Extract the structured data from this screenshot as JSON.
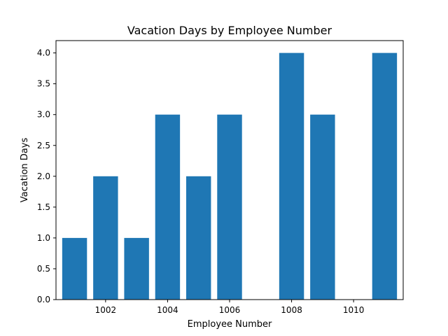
{
  "chart_data": {
    "type": "bar",
    "title": "Vacation Days by Employee Number",
    "xlabel": "Employee Number",
    "ylabel": "Vacation Days",
    "x": [
      1001,
      1002,
      1003,
      1004,
      1005,
      1006,
      1008,
      1009,
      1011
    ],
    "values": [
      1,
      2,
      1,
      3,
      2,
      3,
      4,
      3,
      4
    ],
    "xlim": [
      1000.4,
      1011.6
    ],
    "ylim": [
      0,
      4.2
    ],
    "xticks": [
      1002,
      1004,
      1006,
      1008,
      1010
    ],
    "xtick_labels": [
      "1002",
      "1004",
      "1006",
      "1008",
      "1010"
    ],
    "yticks": [
      0,
      0.5,
      1,
      1.5,
      2,
      2.5,
      3,
      3.5,
      4
    ],
    "ytick_labels": [
      "0.0",
      "0.5",
      "1.0",
      "1.5",
      "2.0",
      "2.5",
      "3.0",
      "3.5",
      "4.0"
    ],
    "bar_color": "#1f77b4",
    "grid": false,
    "legend": "none"
  }
}
